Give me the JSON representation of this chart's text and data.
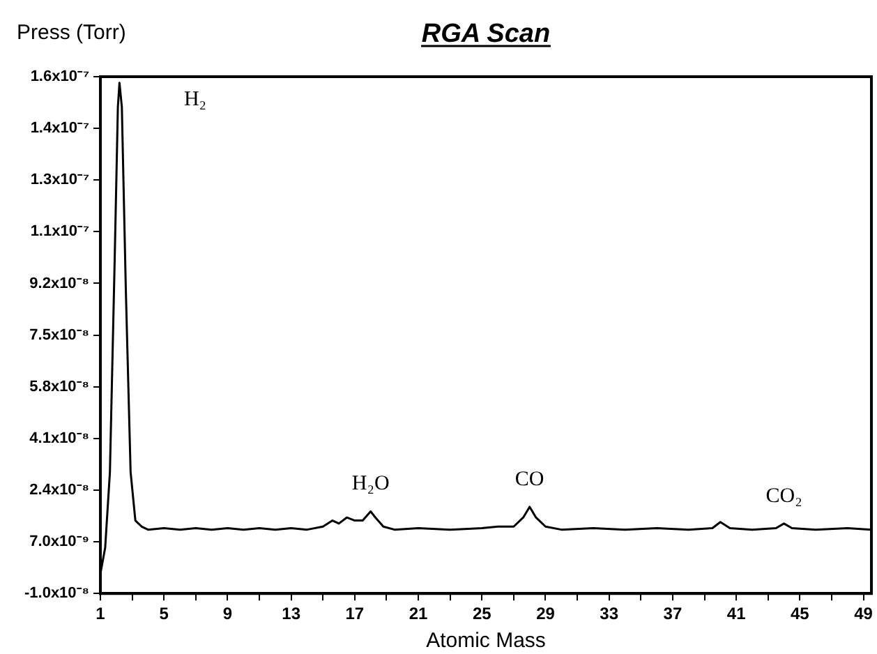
{
  "chart_data": {
    "type": "line",
    "title": "RGA Scan",
    "xlabel": "Atomic Mass",
    "ylabel": "Press (Torr)",
    "x": [
      1,
      1.3,
      1.6,
      1.9,
      2.1,
      2.2,
      2.35,
      2.6,
      2.9,
      3.2,
      3.6,
      4,
      5,
      6,
      7,
      8,
      9,
      10,
      11,
      12,
      13,
      14,
      15,
      15.6,
      16,
      16.5,
      17,
      17.5,
      18,
      18.3,
      18.8,
      19.5,
      21,
      23,
      25,
      26,
      27,
      27.6,
      28,
      28.4,
      29,
      30,
      32,
      34,
      36,
      38,
      39.5,
      40,
      40.6,
      42,
      43.5,
      44,
      44.5,
      46,
      48,
      49.5
    ],
    "series": [
      {
        "color": "#000000",
        "values": [
          -3.5e-09,
          5e-09,
          3e-08,
          1e-07,
          1.5e-07,
          1.58e-07,
          1.5e-07,
          9e-08,
          3e-08,
          1.4e-08,
          1.2e-08,
          1.1e-08,
          1.15e-08,
          1.1e-08,
          1.15e-08,
          1.1e-08,
          1.15e-08,
          1.1e-08,
          1.15e-08,
          1.1e-08,
          1.15e-08,
          1.1e-08,
          1.2e-08,
          1.4e-08,
          1.3e-08,
          1.5e-08,
          1.4e-08,
          1.4e-08,
          1.7e-08,
          1.5e-08,
          1.2e-08,
          1.1e-08,
          1.15e-08,
          1.1e-08,
          1.15e-08,
          1.2e-08,
          1.2e-08,
          1.5e-08,
          1.85e-08,
          1.5e-08,
          1.2e-08,
          1.1e-08,
          1.15e-08,
          1.1e-08,
          1.15e-08,
          1.1e-08,
          1.15e-08,
          1.35e-08,
          1.15e-08,
          1.1e-08,
          1.15e-08,
          1.3e-08,
          1.15e-08,
          1.1e-08,
          1.15e-08,
          1.1e-08
        ]
      }
    ],
    "xlim": [
      1,
      49.5
    ],
    "xticks": [
      1,
      {
        "value": 3,
        "label": null
      },
      5,
      {
        "value": 7,
        "label": null
      },
      9,
      {
        "value": 11,
        "label": null
      },
      13,
      {
        "value": 15,
        "label": null
      },
      17,
      {
        "value": 19,
        "label": null
      },
      21,
      {
        "value": 23,
        "label": null
      },
      25,
      {
        "value": 27,
        "label": null
      },
      29,
      {
        "value": 31,
        "label": null
      },
      33,
      {
        "value": 35,
        "label": null
      },
      37,
      {
        "value": 39,
        "label": null
      },
      41,
      {
        "value": 43,
        "label": null
      },
      45,
      {
        "value": 47,
        "label": null
      },
      49
    ],
    "ylim": [
      -1e-08,
      1.6e-07
    ],
    "yticks": [
      {
        "value": -1e-08,
        "label": "-1.0x10⁻⁸"
      },
      {
        "value": 7e-09,
        "label": "7.0x10⁻⁹"
      },
      {
        "value": 2.4e-08,
        "label": "2.4x10⁻⁸"
      },
      {
        "value": 4.1e-08,
        "label": "4.1x10⁻⁸"
      },
      {
        "value": 5.8e-08,
        "label": "5.8x10⁻⁸"
      },
      {
        "value": 7.5e-08,
        "label": "7.5x10⁻⁸"
      },
      {
        "value": 9.2e-08,
        "label": "9.2x10⁻⁸"
      },
      {
        "value": 1.09e-07,
        "label": "1.1x10⁻⁷"
      },
      {
        "value": 1.26e-07,
        "label": "1.3x10⁻⁷"
      },
      {
        "value": 1.43e-07,
        "label": "1.4x10⁻⁷"
      },
      {
        "value": 1.6e-07,
        "label": "1.6x10⁻⁷"
      }
    ],
    "grid": false,
    "legend": false,
    "marker": "none",
    "line_style": "solid",
    "annotations": [
      "H₂",
      {
        "text": "H₂O",
        "x": 18,
        "y": 1.7e-08
      },
      {
        "text": "CO",
        "x": 28,
        "y": 1.85e-08
      },
      {
        "text": "CO₂",
        "x": 44,
        "y": 1.3e-08
      }
    ]
  }
}
